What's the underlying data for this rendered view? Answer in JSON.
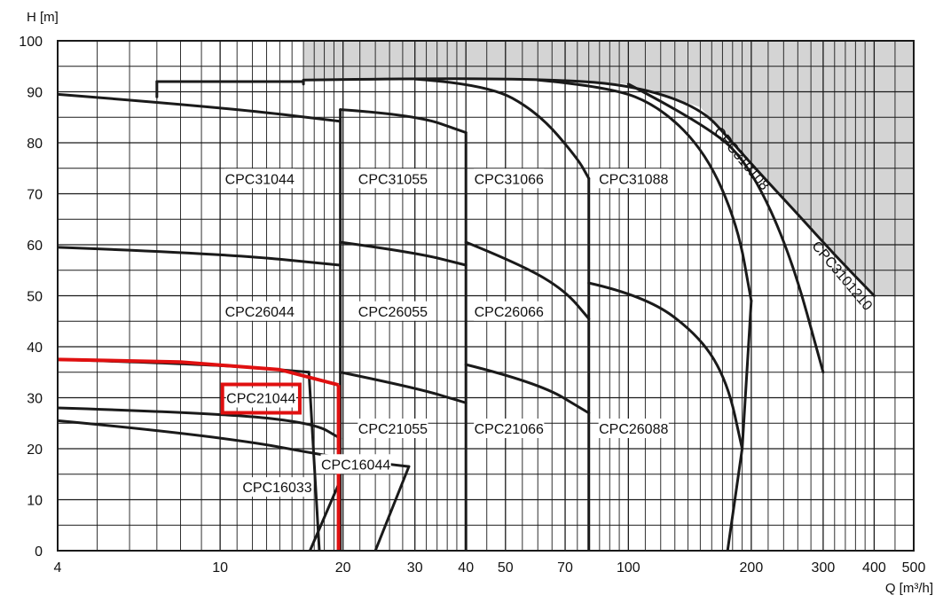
{
  "chart_data": {
    "type": "line",
    "title": "",
    "xlabel": "Q [m³/h]",
    "ylabel": "H [m]",
    "xscale": "log",
    "xlim": [
      4,
      500
    ],
    "ylim": [
      0,
      100
    ],
    "grid": true,
    "x_tick_labels": [
      "4",
      "10",
      "20",
      "30",
      "40",
      "50",
      "70",
      "100",
      "200",
      "300",
      "400",
      "500"
    ],
    "y_tick_labels": [
      "0",
      "10",
      "20",
      "30",
      "40",
      "50",
      "60",
      "70",
      "80",
      "90",
      "100"
    ],
    "colors": {
      "curve": "#1a1a1a",
      "highlight": "#e01010",
      "region_shade": "#d4d4d4",
      "grid": "#1a1a1a"
    },
    "regions": [
      {
        "label": "CPC31044",
        "x": 12.5,
        "y": 73
      },
      {
        "label": "CPC31055",
        "x": 26.5,
        "y": 73
      },
      {
        "label": "CPC31066",
        "x": 51,
        "y": 73
      },
      {
        "label": "CPC31088",
        "x": 103,
        "y": 73
      },
      {
        "label": "CPC310108",
        "x": 190,
        "y": 77,
        "rotation": 50
      },
      {
        "label": "CPC3101210",
        "x": 335,
        "y": 54,
        "rotation": 50
      },
      {
        "label": "CPC26044",
        "x": 12.5,
        "y": 47
      },
      {
        "label": "CPC26055",
        "x": 26.5,
        "y": 47
      },
      {
        "label": "CPC26066",
        "x": 51,
        "y": 47
      },
      {
        "label": "CPC21044",
        "x": 12.6,
        "y": 30,
        "boxed": true
      },
      {
        "label": "CPC21055",
        "x": 26.5,
        "y": 24
      },
      {
        "label": "CPC21066",
        "x": 51,
        "y": 24
      },
      {
        "label": "CPC26088",
        "x": 103,
        "y": 24
      },
      {
        "label": "CPC16044",
        "x": 21.5,
        "y": 17
      },
      {
        "label": "CPC16033",
        "x": 13.8,
        "y": 12.5
      }
    ],
    "series": [
      {
        "points": [
          [
            4,
            89.5
          ],
          [
            10,
            87
          ],
          [
            19.7,
            84.2
          ]
        ]
      },
      {
        "points": [
          [
            7,
            92
          ],
          [
            7,
            89
          ]
        ]
      },
      {
        "points": [
          [
            7,
            92
          ],
          [
            16,
            92
          ]
        ]
      },
      {
        "points": [
          [
            16,
            92
          ],
          [
            16,
            91.5
          ]
        ]
      },
      {
        "points": [
          [
            16,
            92.3
          ],
          [
            30,
            92.6
          ],
          [
            60,
            92.5
          ],
          [
            100,
            91.5
          ],
          [
            150,
            87
          ],
          [
            180,
            80
          ],
          [
            210,
            74
          ],
          [
            260,
            66
          ],
          [
            320,
            58
          ],
          [
            400,
            50
          ]
        ]
      },
      {
        "points": [
          [
            19.7,
            86.5
          ],
          [
            30,
            85.5
          ],
          [
            40,
            82
          ]
        ]
      },
      {
        "points": [
          [
            19.7,
            86.5
          ],
          [
            19.7,
            0
          ]
        ]
      },
      {
        "points": [
          [
            30,
            92.5
          ],
          [
            45,
            91.5
          ],
          [
            60,
            86
          ],
          [
            75,
            77
          ],
          [
            80,
            73
          ]
        ]
      },
      {
        "points": [
          [
            60,
            92.3
          ],
          [
            90,
            91
          ],
          [
            120,
            87
          ],
          [
            155,
            78
          ],
          [
            185,
            64
          ],
          [
            200,
            49
          ]
        ]
      },
      {
        "points": [
          [
            100,
            91.5
          ],
          [
            160,
            83
          ],
          [
            200,
            75
          ],
          [
            250,
            58
          ],
          [
            300,
            35
          ]
        ]
      },
      {
        "points": [
          [
            40,
            82
          ],
          [
            40,
            0
          ]
        ]
      },
      {
        "points": [
          [
            80,
            73
          ],
          [
            80,
            0
          ]
        ]
      },
      {
        "points": [
          [
            4,
            59.5
          ],
          [
            10,
            58.3
          ],
          [
            19.7,
            56
          ]
        ]
      },
      {
        "points": [
          [
            19.7,
            60.5
          ],
          [
            30,
            58.5
          ],
          [
            40,
            56
          ]
        ]
      },
      {
        "points": [
          [
            40,
            60.5
          ],
          [
            55,
            56
          ],
          [
            70,
            51
          ],
          [
            80,
            45.5
          ]
        ]
      },
      {
        "points": [
          [
            80,
            52.5
          ],
          [
            110,
            50
          ],
          [
            150,
            42
          ],
          [
            175,
            33
          ],
          [
            190,
            20
          ]
        ]
      },
      {
        "points": [
          [
            190,
            20
          ],
          [
            200,
            49
          ]
        ]
      },
      {
        "points": [
          [
            190,
            20
          ],
          [
            175,
            0
          ]
        ]
      },
      {
        "points": [
          [
            4,
            28
          ],
          [
            10,
            27
          ],
          [
            17,
            25
          ],
          [
            19.7,
            22
          ]
        ]
      },
      {
        "points": [
          [
            19.7,
            35
          ],
          [
            30,
            32
          ],
          [
            40,
            29
          ]
        ]
      },
      {
        "points": [
          [
            40,
            36.5
          ],
          [
            60,
            33
          ],
          [
            80,
            27
          ]
        ]
      },
      {
        "points": [
          [
            4,
            25.5
          ],
          [
            10,
            22.5
          ],
          [
            20,
            18
          ],
          [
            29,
            16.5
          ]
        ]
      },
      {
        "points": [
          [
            29,
            16.5
          ],
          [
            24,
            0
          ]
        ]
      },
      {
        "points": [
          [
            4,
            37.5
          ],
          [
            10,
            36.5
          ],
          [
            16.5,
            35
          ]
        ]
      },
      {
        "points": [
          [
            16.5,
            35
          ],
          [
            17.5,
            0
          ]
        ]
      },
      {
        "points": [
          [
            19.5,
            13
          ],
          [
            16.6,
            0
          ]
        ]
      }
    ],
    "highlight_series": [
      {
        "points": [
          [
            4,
            37.5
          ],
          [
            8,
            37
          ],
          [
            14,
            35.5
          ],
          [
            19.5,
            32.5
          ]
        ]
      },
      {
        "points": [
          [
            19.5,
            32.5
          ],
          [
            19.5,
            0
          ]
        ]
      }
    ]
  }
}
